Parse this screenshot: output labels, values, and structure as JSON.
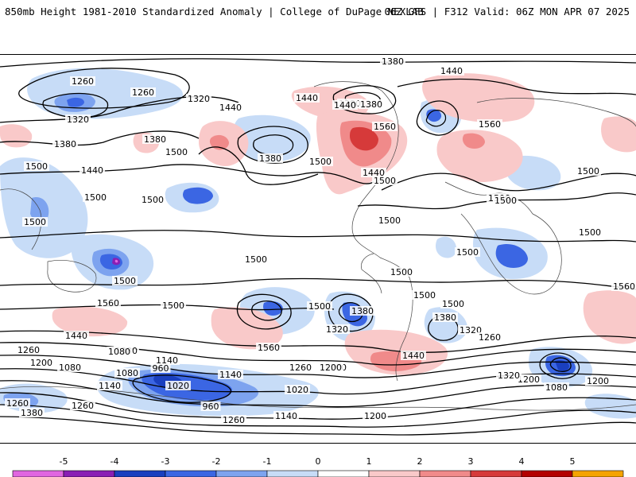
{
  "header": {
    "title": "850mb Height 1981-2010 Standardized Anomaly | College of DuPage NEXLAB",
    "run_info": "06Z GFS | F312 Valid: 06Z MON APR 07 2025"
  },
  "colorbar": {
    "ticks": [
      "-5",
      "-4",
      "-3",
      "-2",
      "-1",
      "0",
      "1",
      "2",
      "3",
      "4",
      "5"
    ],
    "colors": [
      "#e066e0",
      "#8a1fb4",
      "#1a3fbf",
      "#3b66e3",
      "#7da3ef",
      "#c7dcf7",
      "#ffffff",
      "#f9c9c9",
      "#f08a8a",
      "#d63a3a",
      "#b30000",
      "#f5a300"
    ]
  },
  "map": {
    "contour_labels": [
      "1380",
      "1260",
      "1260",
      "1440",
      "1320",
      "1320",
      "1440",
      "1380",
      "1380",
      "1440",
      "1380",
      "1440",
      "1500",
      "1500",
      "1380",
      "1500",
      "1440",
      "1380",
      "1560",
      "1560",
      "1500",
      "1500",
      "1500",
      "1440",
      "1500",
      "1500",
      "1500",
      "1500",
      "1500",
      "1500",
      "1500",
      "1500",
      "1500",
      "1500",
      "1500",
      "1560",
      "1500",
      "1500",
      "1380",
      "1500",
      "1380",
      "1320",
      "1260",
      "1320",
      "1200",
      "1440",
      "1440",
      "1560",
      "1560",
      "1260",
      "1380",
      "1200",
      "1140",
      "1080",
      "1260",
      "960",
      "1020",
      "1020",
      "1200",
      "1080",
      "1140",
      "1080",
      "1200",
      "1140",
      "1200",
      "1080",
      "960",
      "1140",
      "1260",
      "1200",
      "1320",
      "1380",
      "1260",
      "1260"
    ]
  }
}
